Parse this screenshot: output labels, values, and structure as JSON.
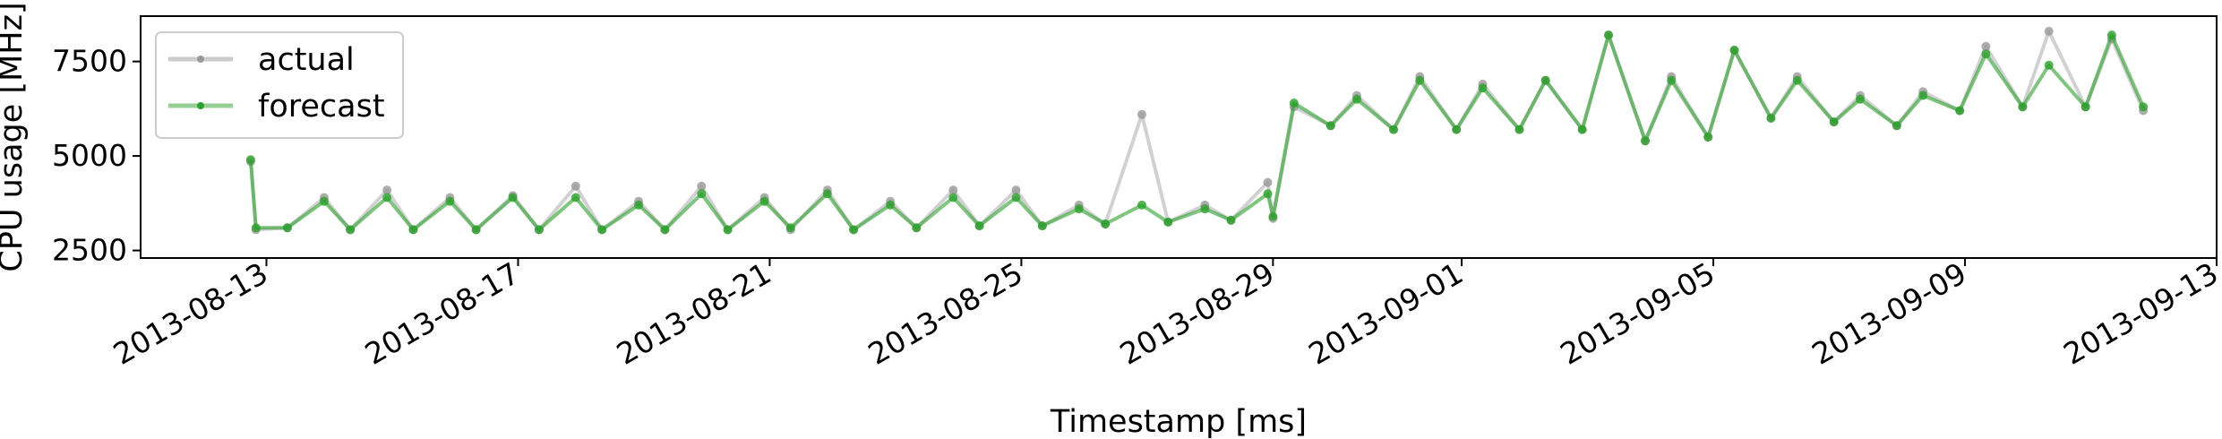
{
  "chart_data": {
    "type": "line",
    "title": "",
    "xlabel": "Timestamp [ms]",
    "ylabel": "CPU usage [MHz]",
    "xlim": [
      "2013-08-11",
      "2013-09-13"
    ],
    "ylim": [
      2300,
      8700
    ],
    "x_ticks": [
      "2013-08-13",
      "2013-08-17",
      "2013-08-21",
      "2013-08-25",
      "2013-08-29",
      "2013-09-01",
      "2013-09-05",
      "2013-09-09",
      "2013-09-13"
    ],
    "y_ticks": [
      2500,
      5000,
      7500
    ],
    "y_tick_labels": [
      "2500",
      "5000",
      "7500"
    ],
    "grid": false,
    "legend_position": "top-left",
    "series": [
      {
        "name": "actual",
        "color": "#999999",
        "x": [
          "2013-08-12 18:00",
          "2013-08-12 20:00",
          "2013-08-13 08:00",
          "2013-08-13 22:00",
          "2013-08-14 08:00",
          "2013-08-14 22:00",
          "2013-08-15 08:00",
          "2013-08-15 22:00",
          "2013-08-16 08:00",
          "2013-08-16 22:00",
          "2013-08-17 08:00",
          "2013-08-17 22:00",
          "2013-08-18 08:00",
          "2013-08-18 22:00",
          "2013-08-19 08:00",
          "2013-08-19 22:00",
          "2013-08-20 08:00",
          "2013-08-20 22:00",
          "2013-08-21 08:00",
          "2013-08-21 22:00",
          "2013-08-22 08:00",
          "2013-08-22 22:00",
          "2013-08-23 08:00",
          "2013-08-23 22:00",
          "2013-08-24 08:00",
          "2013-08-24 22:00",
          "2013-08-25 08:00",
          "2013-08-25 22:00",
          "2013-08-26 08:00",
          "2013-08-26 22:00",
          "2013-08-27 08:00",
          "2013-08-27 22:00",
          "2013-08-28 08:00",
          "2013-08-28 22:00",
          "2013-08-29 00:00",
          "2013-08-29 08:00",
          "2013-08-29 22:00",
          "2013-08-30 08:00",
          "2013-08-30 22:00",
          "2013-08-31 08:00",
          "2013-08-31 22:00",
          "2013-09-01 08:00",
          "2013-09-01 22:00",
          "2013-09-02 08:00",
          "2013-09-02 22:00",
          "2013-09-03 08:00",
          "2013-09-03 22:00",
          "2013-09-04 08:00",
          "2013-09-04 22:00",
          "2013-09-05 08:00",
          "2013-09-05 22:00",
          "2013-09-06 08:00",
          "2013-09-06 22:00",
          "2013-09-07 08:00",
          "2013-09-07 22:00",
          "2013-09-08 08:00",
          "2013-09-08 22:00",
          "2013-09-09 08:00",
          "2013-09-09 22:00",
          "2013-09-10 08:00",
          "2013-09-10 22:00",
          "2013-09-11 08:00",
          "2013-09-11 20:00"
        ],
        "values": [
          4850,
          3050,
          3100,
          3900,
          3050,
          4100,
          3050,
          3900,
          3050,
          3950,
          3050,
          4200,
          3050,
          3800,
          3050,
          4200,
          3050,
          3900,
          3050,
          4100,
          3050,
          3800,
          3100,
          4100,
          3150,
          4100,
          3150,
          3700,
          3200,
          6100,
          3250,
          3700,
          3300,
          4300,
          3350,
          6300,
          5800,
          6600,
          5700,
          7100,
          5700,
          6900,
          5700,
          7000,
          5700,
          8200,
          5400,
          7100,
          5500,
          7800,
          6000,
          7100,
          5900,
          6600,
          5800,
          6700,
          6200,
          7900,
          6300,
          8300,
          6300,
          8100,
          6200
        ]
      },
      {
        "name": "forecast",
        "color": "#2ca02c",
        "x": [
          "2013-08-12 18:00",
          "2013-08-12 20:00",
          "2013-08-13 08:00",
          "2013-08-13 22:00",
          "2013-08-14 08:00",
          "2013-08-14 22:00",
          "2013-08-15 08:00",
          "2013-08-15 22:00",
          "2013-08-16 08:00",
          "2013-08-16 22:00",
          "2013-08-17 08:00",
          "2013-08-17 22:00",
          "2013-08-18 08:00",
          "2013-08-18 22:00",
          "2013-08-19 08:00",
          "2013-08-19 22:00",
          "2013-08-20 08:00",
          "2013-08-20 22:00",
          "2013-08-21 08:00",
          "2013-08-21 22:00",
          "2013-08-22 08:00",
          "2013-08-22 22:00",
          "2013-08-23 08:00",
          "2013-08-23 22:00",
          "2013-08-24 08:00",
          "2013-08-24 22:00",
          "2013-08-25 08:00",
          "2013-08-25 22:00",
          "2013-08-26 08:00",
          "2013-08-26 22:00",
          "2013-08-27 08:00",
          "2013-08-27 22:00",
          "2013-08-28 08:00",
          "2013-08-28 22:00",
          "2013-08-29 00:00",
          "2013-08-29 08:00",
          "2013-08-29 22:00",
          "2013-08-30 08:00",
          "2013-08-30 22:00",
          "2013-08-31 08:00",
          "2013-08-31 22:00",
          "2013-09-01 08:00",
          "2013-09-01 22:00",
          "2013-09-02 08:00",
          "2013-09-02 22:00",
          "2013-09-03 08:00",
          "2013-09-03 22:00",
          "2013-09-04 08:00",
          "2013-09-04 22:00",
          "2013-09-05 08:00",
          "2013-09-05 22:00",
          "2013-09-06 08:00",
          "2013-09-06 22:00",
          "2013-09-07 08:00",
          "2013-09-07 22:00",
          "2013-09-08 08:00",
          "2013-09-08 22:00",
          "2013-09-09 08:00",
          "2013-09-09 22:00",
          "2013-09-10 08:00",
          "2013-09-10 22:00",
          "2013-09-11 08:00",
          "2013-09-11 20:00"
        ],
        "values": [
          4900,
          3100,
          3100,
          3800,
          3050,
          3900,
          3050,
          3800,
          3050,
          3900,
          3050,
          3900,
          3050,
          3700,
          3050,
          4000,
          3050,
          3800,
          3100,
          4000,
          3050,
          3700,
          3100,
          3900,
          3150,
          3900,
          3150,
          3600,
          3200,
          3700,
          3250,
          3600,
          3300,
          4000,
          3400,
          6400,
          5800,
          6500,
          5700,
          7000,
          5700,
          6800,
          5700,
          7000,
          5700,
          8200,
          5400,
          7000,
          5500,
          7800,
          6000,
          7000,
          5900,
          6500,
          5800,
          6600,
          6200,
          7700,
          6300,
          7400,
          6300,
          8200,
          6300
        ]
      }
    ]
  }
}
